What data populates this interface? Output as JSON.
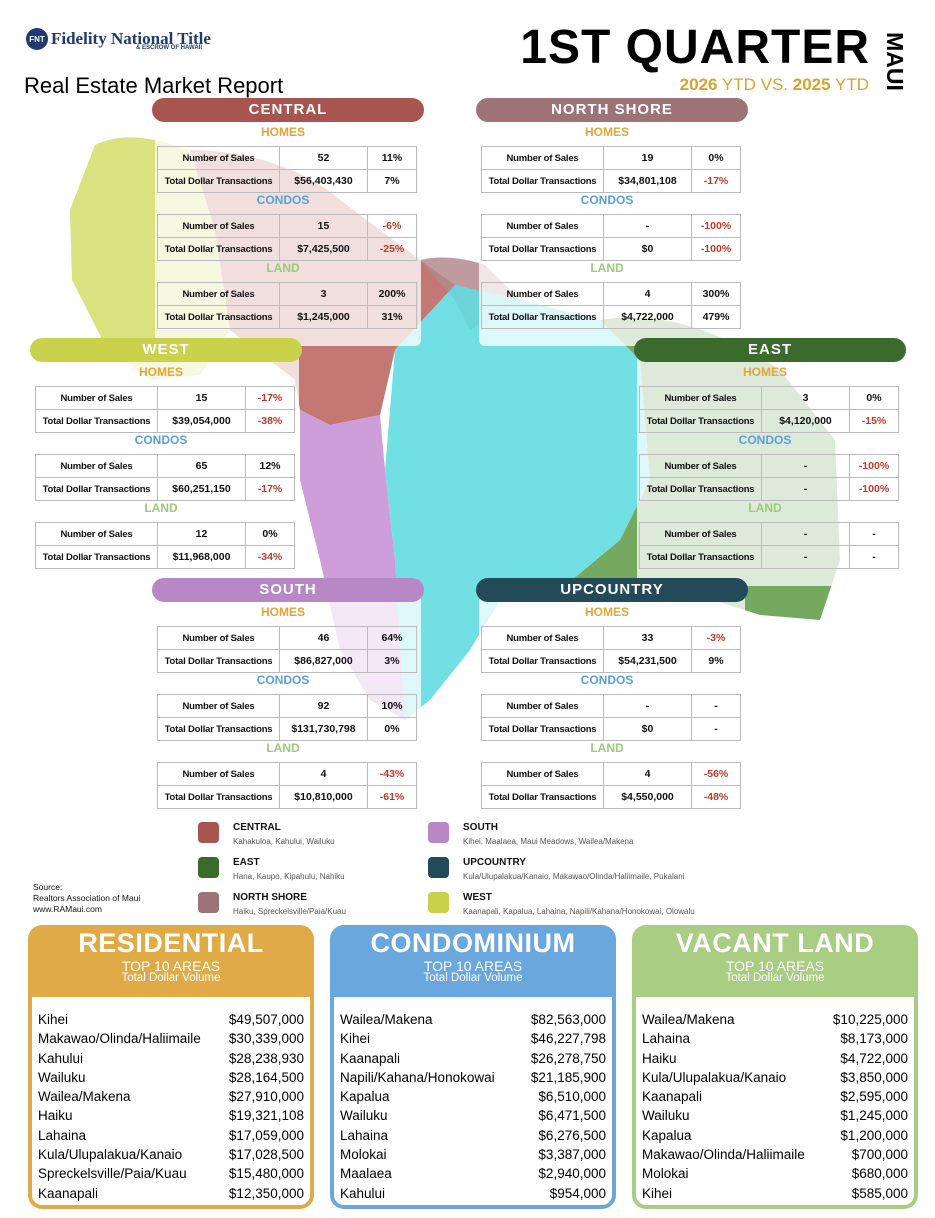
{
  "header": {
    "logo_name": "Fidelity National Title",
    "logo_sub": "& ESCROW OF HAWAII",
    "logo_seal": "FNT",
    "report_title": "Real Estate Market Report",
    "quarter": "1ST QUARTER",
    "island": "MAUI",
    "ytd_year1": "2026",
    "ytd_mid": " YTD VS. ",
    "ytd_year2": "2025",
    "ytd_end": " YTD"
  },
  "colors": {
    "central": "#a8554f",
    "north_shore": "#9c7478",
    "west": "#c9d24a",
    "east": "#3b6b2c",
    "south": "#b887c6",
    "upcountry": "#234a58",
    "homes_label": "#e0a63a",
    "condos_label": "#5aa0dc",
    "land_label": "#9cc97a",
    "negative": "#c0392b",
    "ytd": "#d6a335",
    "residential": "#e0ab47",
    "condominium": "#6aa7dc",
    "vacant_land": "#a9cd82"
  },
  "row_labels": {
    "sales": "Number of Sales",
    "dollars": "Total Dollar Transactions"
  },
  "section_labels": {
    "homes": "HOMES",
    "condos": "CONDOS",
    "land": "LAND"
  },
  "regions": {
    "central": {
      "title": "CENTRAL",
      "homes": {
        "sales": "52",
        "sales_pct": "11%",
        "dollars": "$56,403,430",
        "dollars_pct": "7%"
      },
      "condos": {
        "sales": "15",
        "sales_pct": "-6%",
        "dollars": "$7,425,500",
        "dollars_pct": "-25%"
      },
      "land": {
        "sales": "3",
        "sales_pct": "200%",
        "dollars": "$1,245,000",
        "dollars_pct": "31%"
      }
    },
    "north_shore": {
      "title": "NORTH SHORE",
      "homes": {
        "sales": "19",
        "sales_pct": "0%",
        "dollars": "$34,801,108",
        "dollars_pct": "-17%"
      },
      "condos": {
        "sales": "-",
        "sales_pct": "-100%",
        "dollars": "$0",
        "dollars_pct": "-100%"
      },
      "land": {
        "sales": "4",
        "sales_pct": "300%",
        "dollars": "$4,722,000",
        "dollars_pct": "479%"
      }
    },
    "west": {
      "title": "WEST",
      "homes": {
        "sales": "15",
        "sales_pct": "-17%",
        "dollars": "$39,054,000",
        "dollars_pct": "-38%"
      },
      "condos": {
        "sales": "65",
        "sales_pct": "12%",
        "dollars": "$60,251,150",
        "dollars_pct": "-17%"
      },
      "land": {
        "sales": "12",
        "sales_pct": "0%",
        "dollars": "$11,968,000",
        "dollars_pct": "-34%"
      }
    },
    "east": {
      "title": "EAST",
      "homes": {
        "sales": "3",
        "sales_pct": "0%",
        "dollars": "$4,120,000",
        "dollars_pct": "-15%"
      },
      "condos": {
        "sales": "-",
        "sales_pct": "-100%",
        "dollars": "-",
        "dollars_pct": "-100%"
      },
      "land": {
        "sales": "-",
        "sales_pct": "-",
        "dollars": "-",
        "dollars_pct": "-"
      }
    },
    "south": {
      "title": "SOUTH",
      "homes": {
        "sales": "46",
        "sales_pct": "64%",
        "dollars": "$86,827,000",
        "dollars_pct": "3%"
      },
      "condos": {
        "sales": "92",
        "sales_pct": "10%",
        "dollars": "$131,730,798",
        "dollars_pct": "0%"
      },
      "land": {
        "sales": "4",
        "sales_pct": "-43%",
        "dollars": "$10,810,000",
        "dollars_pct": "-61%"
      }
    },
    "upcountry": {
      "title": "UPCOUNTRY",
      "homes": {
        "sales": "33",
        "sales_pct": "-3%",
        "dollars": "$54,231,500",
        "dollars_pct": "9%"
      },
      "condos": {
        "sales": "-",
        "sales_pct": "-",
        "dollars": "$0",
        "dollars_pct": "-"
      },
      "land": {
        "sales": "4",
        "sales_pct": "-56%",
        "dollars": "$4,550,000",
        "dollars_pct": "-48%"
      }
    }
  },
  "legend": [
    {
      "key": "central",
      "name": "CENTRAL",
      "areas": "Kahakuloa, Kahului, Wailuku"
    },
    {
      "key": "east",
      "name": "EAST",
      "areas": "Hana, Kaupo, Kipahulu, Nahiku"
    },
    {
      "key": "north_shore",
      "name": "NORTH SHORE",
      "areas": "Haiku, Spreckelsville/Paia/Kuau"
    },
    {
      "key": "south",
      "name": "SOUTH",
      "areas": "Kihei, Maalaea, Maui Meadows, Wailea/Makena"
    },
    {
      "key": "upcountry",
      "name": "UPCOUNTRY",
      "areas": "Kula/Ulupalakua/Kanaio, Makawao/Olinda/Haliimaile, Pukalani"
    },
    {
      "key": "west",
      "name": "WEST",
      "areas": "Kaanapali, Kapalua, Lahaina, Napili/Kahana/Honokowai, Olowalu"
    }
  ],
  "source": {
    "line1": "Source:",
    "line2": "Realtors Association of Maui",
    "line3": "www.RAMaui.com"
  },
  "top10": [
    {
      "key": "residential",
      "title": "RESIDENTIAL",
      "subtitle": "TOP 10 AREAS",
      "metric": "Total Dollar Volume",
      "rows": [
        {
          "area": "Kihei",
          "value": "$49,507,000"
        },
        {
          "area": "Makawao/Olinda/Haliimaile",
          "value": "$30,339,000"
        },
        {
          "area": "Kahului",
          "value": "$28,238,930"
        },
        {
          "area": "Wailuku",
          "value": "$28,164,500"
        },
        {
          "area": "Wailea/Makena",
          "value": "$27,910,000"
        },
        {
          "area": "Haiku",
          "value": "$19,321,108"
        },
        {
          "area": "Lahaina",
          "value": "$17,059,000"
        },
        {
          "area": "Kula/Ulupalakua/Kanaio",
          "value": "$17,028,500"
        },
        {
          "area": "Spreckelsville/Paia/Kuau",
          "value": "$15,480,000"
        },
        {
          "area": "Kaanapali",
          "value": "$12,350,000"
        }
      ]
    },
    {
      "key": "condominium",
      "title": "CONDOMINIUM",
      "subtitle": "TOP 10 AREAS",
      "metric": "Total Dollar Volume",
      "rows": [
        {
          "area": "Wailea/Makena",
          "value": "$82,563,000"
        },
        {
          "area": "Kihei",
          "value": "$46,227,798"
        },
        {
          "area": "Kaanapali",
          "value": "$26,278,750"
        },
        {
          "area": "Napili/Kahana/Honokowai",
          "value": "$21,185,900"
        },
        {
          "area": "Kapalua",
          "value": "$6,510,000"
        },
        {
          "area": "Wailuku",
          "value": "$6,471,500"
        },
        {
          "area": "Lahaina",
          "value": "$6,276,500"
        },
        {
          "area": "Molokai",
          "value": "$3,387,000"
        },
        {
          "area": "Maalaea",
          "value": "$2,940,000"
        },
        {
          "area": "Kahului",
          "value": "$954,000"
        }
      ]
    },
    {
      "key": "vacant_land",
      "title": "VACANT LAND",
      "subtitle": "TOP 10 AREAS",
      "metric": "Total Dollar Volume",
      "rows": [
        {
          "area": "Wailea/Makena",
          "value": "$10,225,000"
        },
        {
          "area": "Lahaina",
          "value": "$8,173,000"
        },
        {
          "area": "Haiku",
          "value": "$4,722,000"
        },
        {
          "area": "Kula/Ulupalakua/Kanaio",
          "value": "$3,850,000"
        },
        {
          "area": "Kaanapali",
          "value": "$2,595,000"
        },
        {
          "area": "Wailuku",
          "value": "$1,245,000"
        },
        {
          "area": "Kapalua",
          "value": "$1,200,000"
        },
        {
          "area": "Makawao/Olinda/Haliimaile",
          "value": "$700,000"
        },
        {
          "area": "Molokai",
          "value": "$680,000"
        },
        {
          "area": "Kihei",
          "value": "$585,000"
        }
      ]
    }
  ]
}
